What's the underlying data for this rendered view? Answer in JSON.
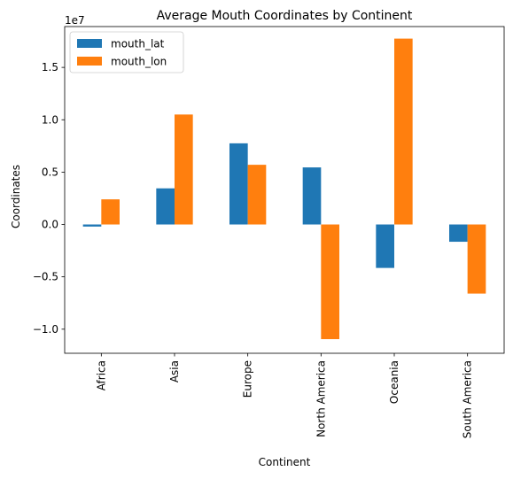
{
  "chart_data": {
    "type": "bar",
    "title": "Average Mouth Coordinates by Continent",
    "xlabel": "Continent",
    "ylabel": "Coordinates",
    "offset_label": "1e7",
    "categories": [
      "Africa",
      "Asia",
      "Europe",
      "North America",
      "Oceania",
      "South America"
    ],
    "series": [
      {
        "name": "mouth_lat",
        "color": "#1f77b4",
        "values": [
          -200000,
          3450000,
          7750000,
          5450000,
          -4150000,
          -1650000
        ]
      },
      {
        "name": "mouth_lon",
        "color": "#ff7f0e",
        "values": [
          2400000,
          10500000,
          5700000,
          -10950000,
          17750000,
          -6600000
        ]
      }
    ],
    "ylim": [
      -12300000,
      18900000
    ],
    "yticks": [
      -10000000,
      -5000000,
      0,
      5000000,
      10000000,
      15000000
    ],
    "ytick_labels": [
      "−1.0",
      "−0.5",
      "0.0",
      "0.5",
      "1.0",
      "1.5"
    ],
    "grid": false,
    "legend_position": "top-left"
  }
}
